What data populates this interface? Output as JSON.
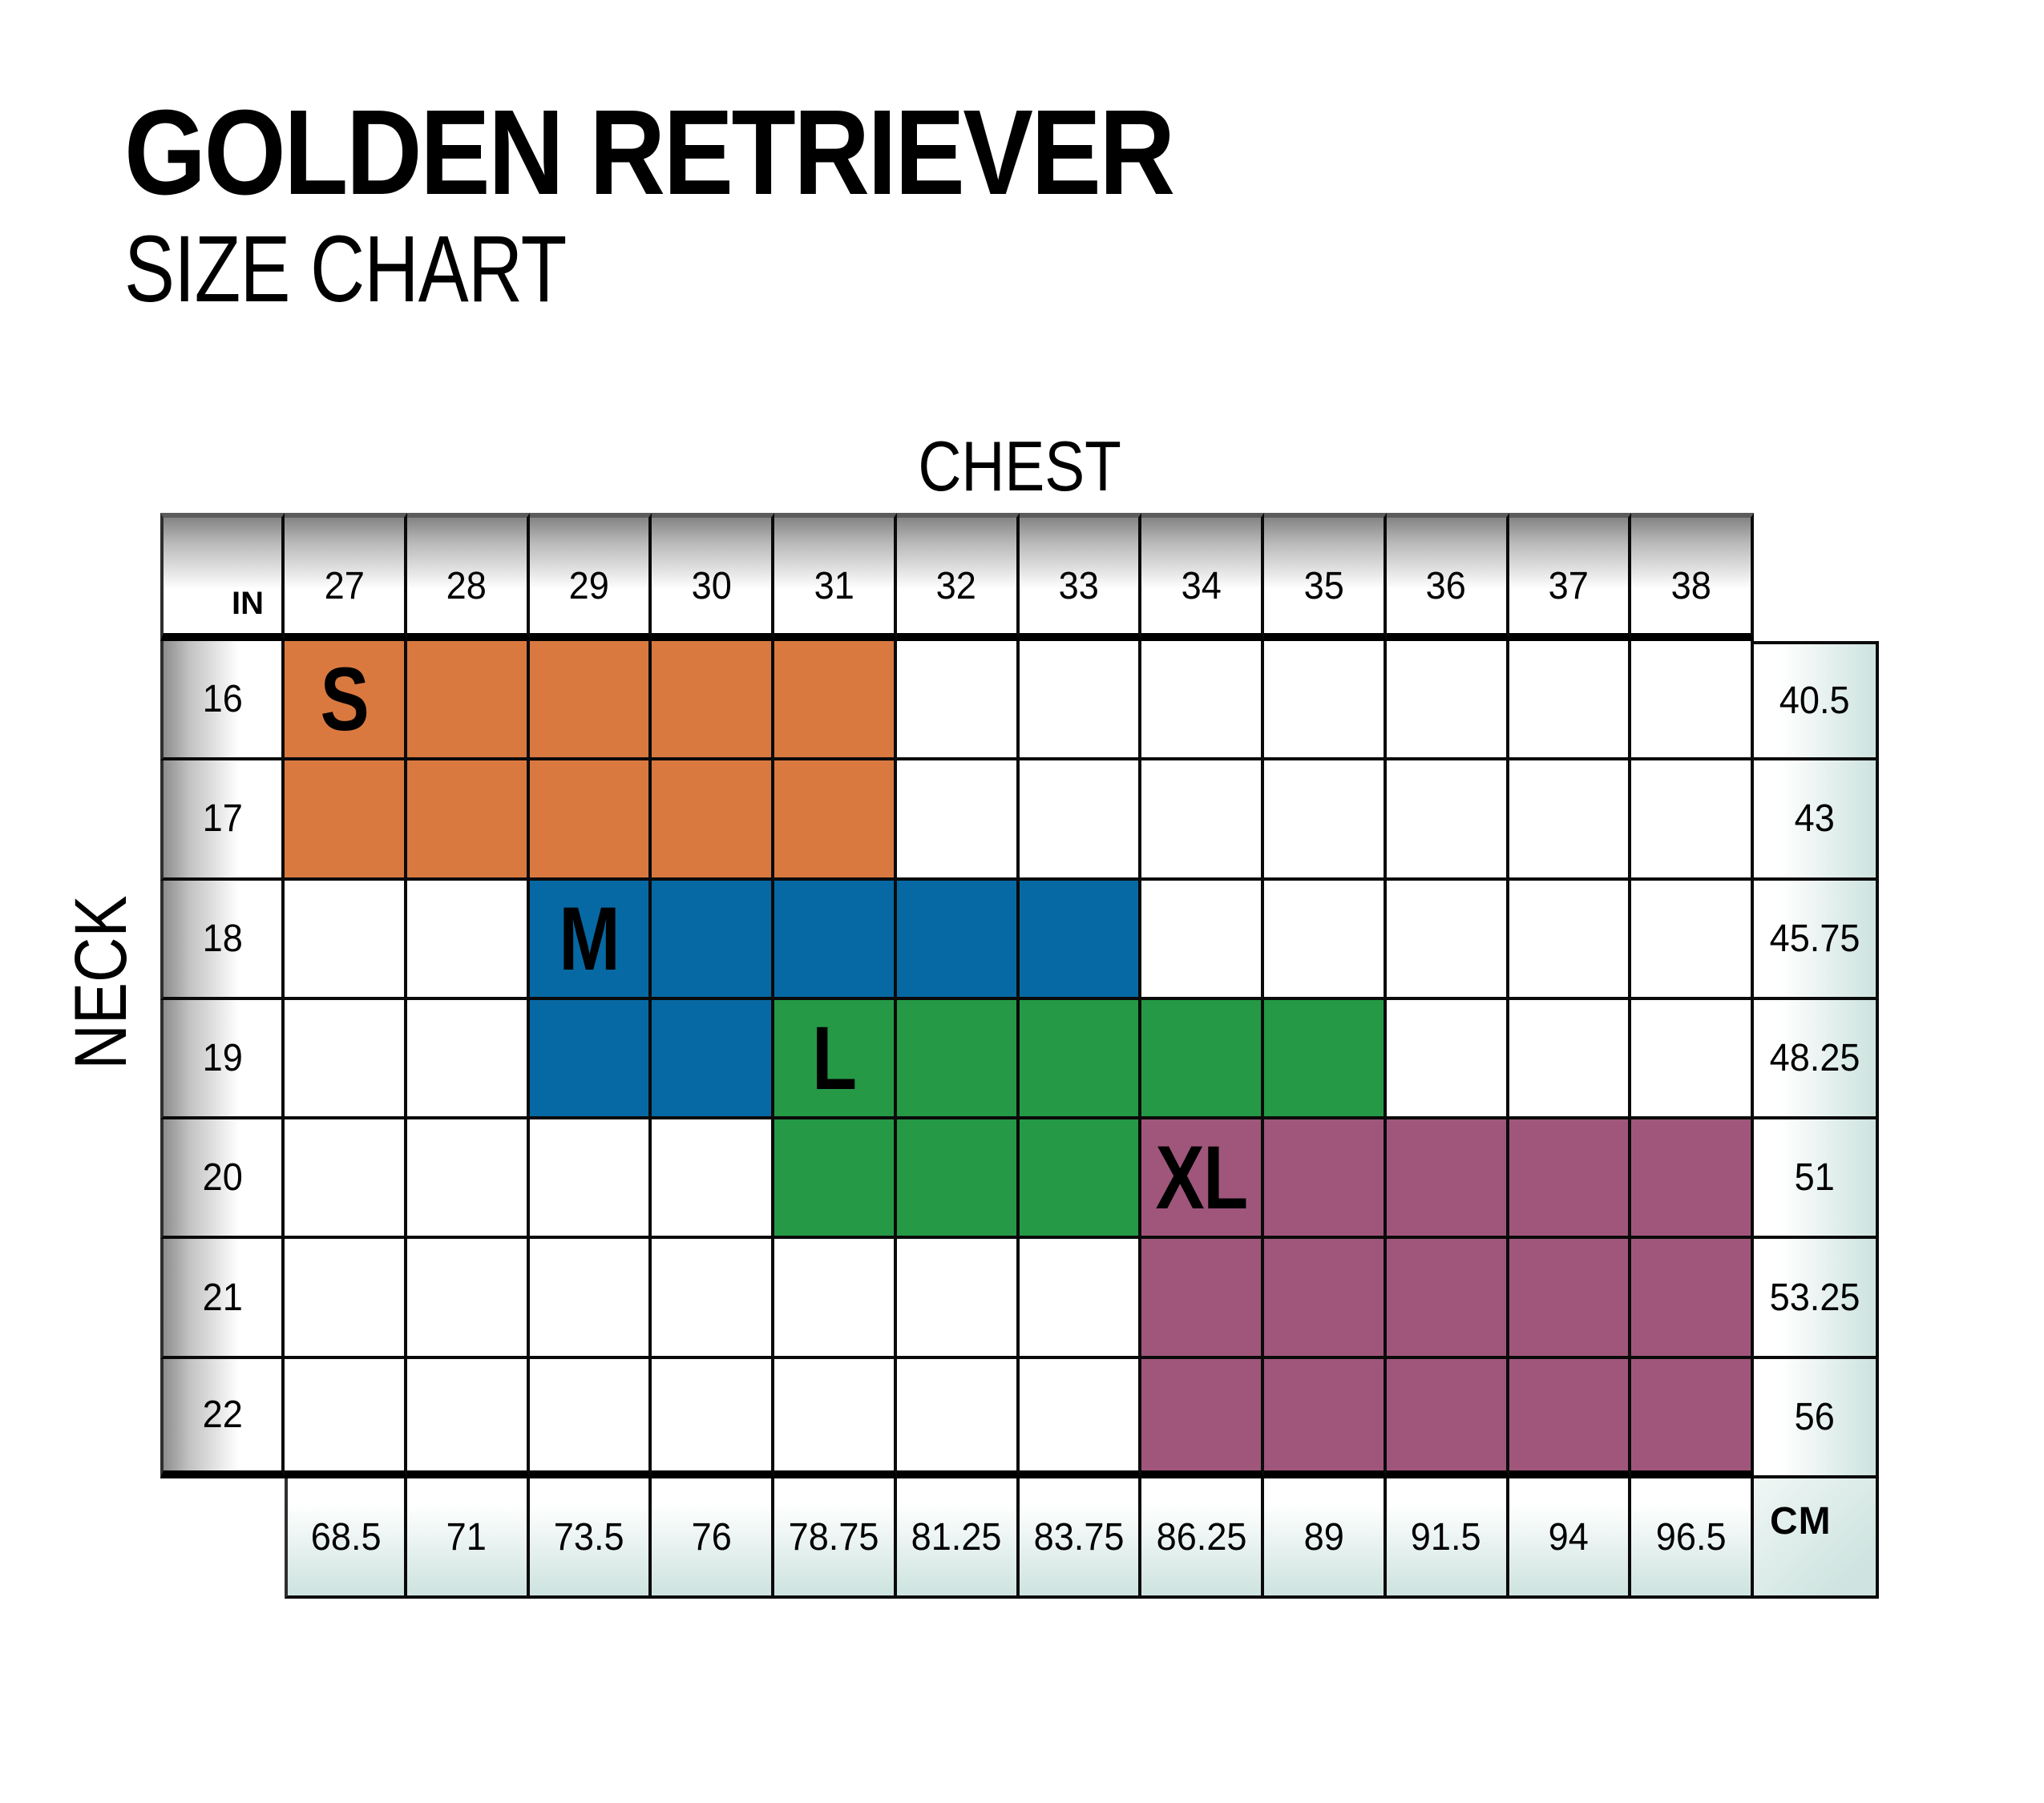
{
  "title": {
    "line1": "GOLDEN RETRIEVER",
    "line2": "SIZE CHART"
  },
  "axes": {
    "top": "CHEST",
    "left": "NECK",
    "in_label": "IN",
    "cm_label": "CM"
  },
  "chart_data": {
    "type": "table",
    "title": "Golden Retriever Size Chart",
    "x_axis_label": "CHEST",
    "y_axis_label": "NECK",
    "chest_in": [
      "27",
      "28",
      "29",
      "30",
      "31",
      "32",
      "33",
      "34",
      "35",
      "36",
      "37",
      "38"
    ],
    "chest_cm": [
      "68.5",
      "71",
      "73.5",
      "76",
      "78.75",
      "81.25",
      "83.75",
      "86.25",
      "89",
      "91.5",
      "94",
      "96.5"
    ],
    "neck_in": [
      "16",
      "17",
      "18",
      "19",
      "20",
      "21",
      "22"
    ],
    "neck_cm": [
      "40.5",
      "43",
      "45.75",
      "48.25",
      "51",
      "53.25",
      "56"
    ],
    "sizes": [
      {
        "label": "S",
        "color": "#D97940",
        "cells": [
          {
            "row": 16,
            "cols": [
              27,
              31
            ]
          },
          {
            "row": 17,
            "cols": [
              27,
              31
            ]
          }
        ],
        "label_cell": {
          "row": 16,
          "col": 27
        }
      },
      {
        "label": "M",
        "color": "#0669A3",
        "cells": [
          {
            "row": 18,
            "cols": [
              29,
              33
            ]
          },
          {
            "row": 19,
            "cols": [
              29,
              30
            ]
          }
        ],
        "label_cell": {
          "row": 18,
          "col": 29
        }
      },
      {
        "label": "L",
        "color": "#259946",
        "cells": [
          {
            "row": 19,
            "cols": [
              31,
              35
            ]
          },
          {
            "row": 20,
            "cols": [
              31,
              33
            ]
          }
        ],
        "label_cell": {
          "row": 19,
          "col": 31
        }
      },
      {
        "label": "XL",
        "color": "#A0567B",
        "cells": [
          {
            "row": 20,
            "cols": [
              34,
              38
            ]
          },
          {
            "row": 21,
            "cols": [
              34,
              38
            ]
          },
          {
            "row": 22,
            "cols": [
              34,
              38
            ]
          }
        ],
        "label_cell": {
          "row": 20,
          "col": 34
        }
      }
    ]
  }
}
